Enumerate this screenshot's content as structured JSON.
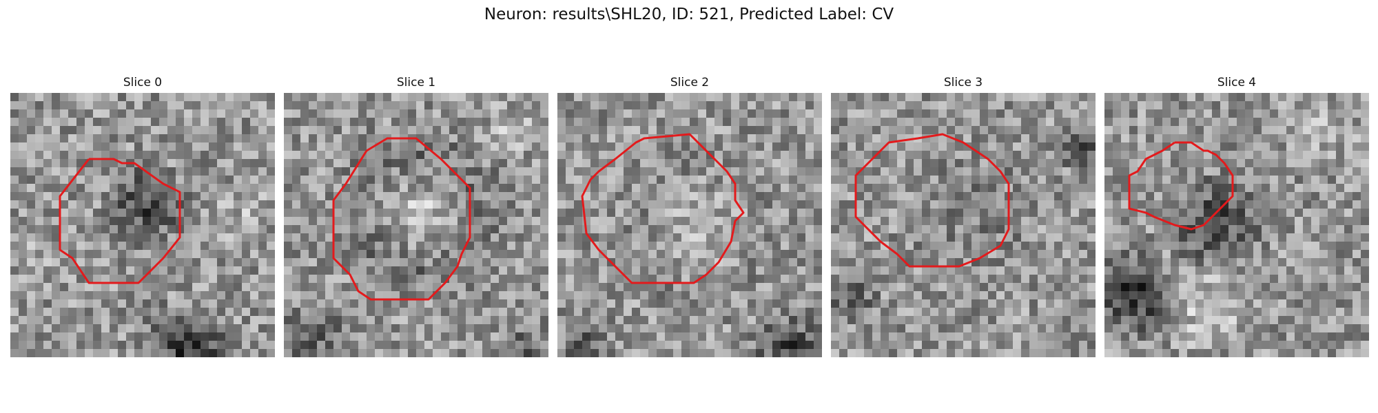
{
  "figure": {
    "title": "Neuron: results\\SHL20, ID: 521, Predicted Label: CV"
  },
  "contour_color": "#e31a1c",
  "panels": [
    {
      "title": "Slice 0"
    },
    {
      "title": "Slice 1"
    },
    {
      "title": "Slice 2"
    },
    {
      "title": "Slice 3"
    },
    {
      "title": "Slice 4"
    }
  ]
}
